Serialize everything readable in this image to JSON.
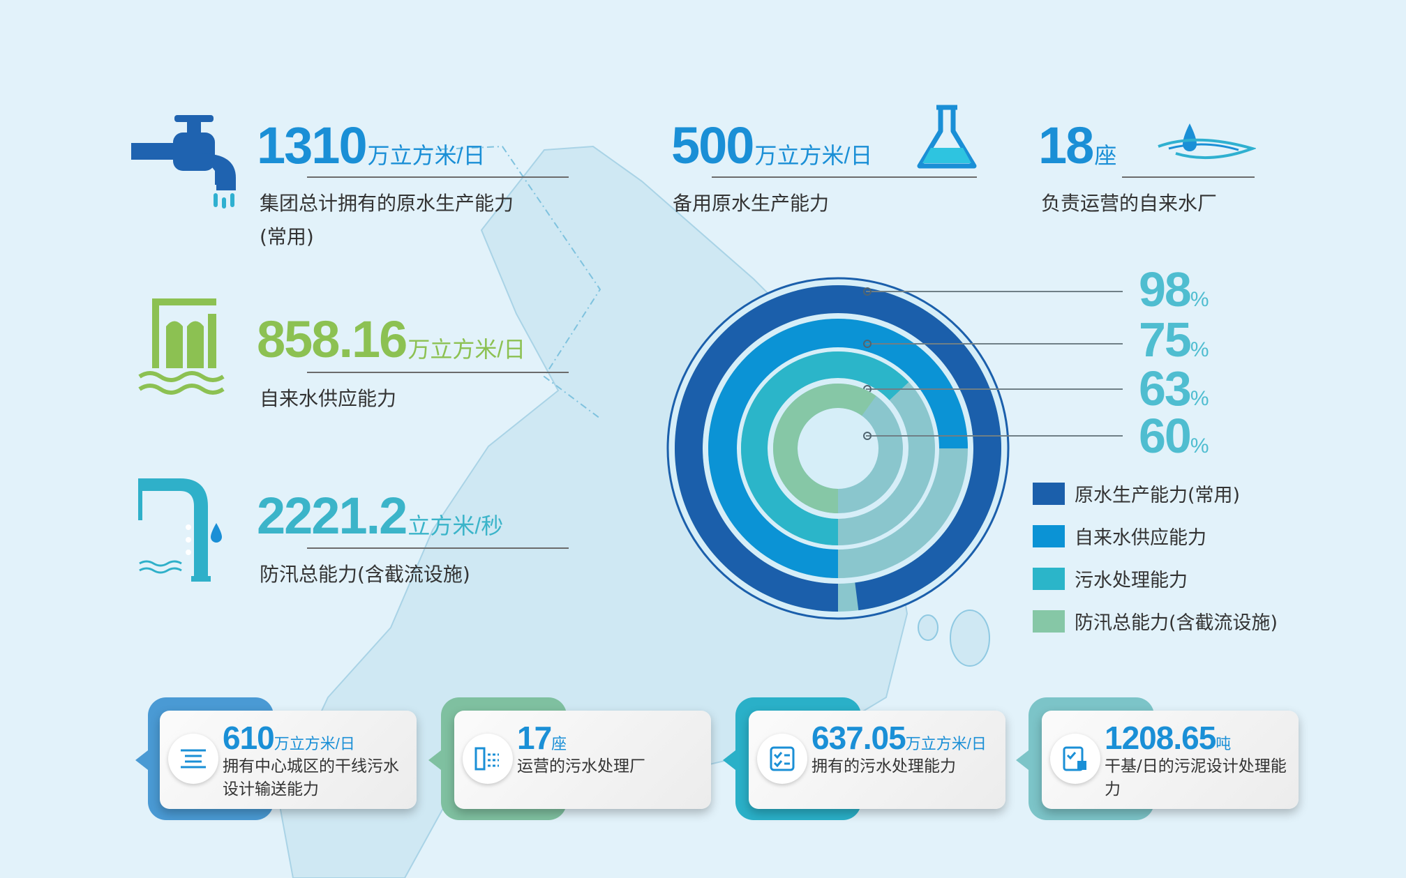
{
  "top_stats": [
    {
      "value": "1310",
      "unit": "万立方米/日",
      "desc": "集团总计拥有的原水生产能力",
      "desc2": "(常用)",
      "icon": "faucet-icon",
      "color": "#1a8fd6"
    },
    {
      "value": "500",
      "unit": "万立方米/日",
      "desc": "备用原水生产能力",
      "icon": "flask-icon",
      "color": "#1a8fd6"
    },
    {
      "value": "18",
      "unit": "座",
      "desc": "负责运营的自来水厂",
      "icon": "water-drop-ripple-icon",
      "color": "#1a8fd6"
    },
    {
      "value": "858.16",
      "unit": "万立方米/日",
      "desc": "自来水供应能力",
      "icon": "water-plant-icon",
      "color": "#8cc152"
    },
    {
      "value": "2221.2",
      "unit": "立方米/秒",
      "desc": "防汛总能力(含截流设施)",
      "icon": "drain-pipe-icon",
      "color": "#3bb4c9"
    }
  ],
  "chart_data": {
    "type": "radial-bar",
    "series": [
      {
        "name": "原水生产能力(常用)",
        "value": 98,
        "label": "98",
        "color": "#1b5fab"
      },
      {
        "name": "自来水供应能力",
        "value": 75,
        "label": "75",
        "color": "#0b93d5"
      },
      {
        "name": "污水处理能力",
        "value": 63,
        "label": "63",
        "color": "#2bb5c9"
      },
      {
        "name": "防汛总能力(含截流设施)",
        "value": 60,
        "label": "60",
        "color": "#86c7a6"
      }
    ],
    "unit": "%",
    "remainder_color": "#8ac6cd",
    "legend": "right"
  },
  "bottom_cards": [
    {
      "value": "610",
      "unit": "万立方米/日",
      "desc": "拥有中心城区的干线污水设计输送能力",
      "icon": "pipeline-icon",
      "tab_color": "#4a9ad4"
    },
    {
      "value": "17",
      "unit": "座",
      "desc": "运营的污水处理厂",
      "icon": "plant-building-icon",
      "tab_color": "#7fc0a0"
    },
    {
      "value": "637.05",
      "unit": "万立方米/日",
      "desc": "拥有的污水处理能力",
      "icon": "checklist-icon",
      "tab_color": "#2ab0c8"
    },
    {
      "value": "1208.65",
      "unit": "吨",
      "desc": "干基/日的污泥设计处理能力",
      "icon": "document-check-icon",
      "tab_color": "#7cc4c8"
    }
  ]
}
